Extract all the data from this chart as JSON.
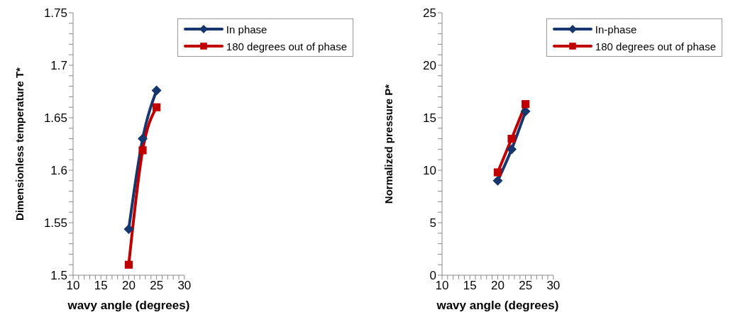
{
  "chart_data": [
    {
      "type": "line",
      "xlabel": "wavy angle (degrees)",
      "ylabel": "Dimensionless temperature T*",
      "x": [
        20,
        22.5,
        25
      ],
      "series": [
        {
          "name": "In phase",
          "color": "#17366e",
          "marker": "diamond",
          "values": [
            1.544,
            1.63,
            1.676
          ]
        },
        {
          "name": "180 degrees out of phase",
          "color": "#c00000",
          "marker": "square",
          "values": [
            1.51,
            1.619,
            1.66
          ]
        }
      ],
      "xlim": [
        10,
        30
      ],
      "xticks": [
        10,
        {
          "value": 11,
          "label": null
        },
        {
          "value": 12,
          "label": null
        },
        {
          "value": 13,
          "label": null
        },
        {
          "value": 14,
          "label": null
        },
        15,
        {
          "value": 16,
          "label": null
        },
        {
          "value": 17,
          "label": null
        },
        {
          "value": 18,
          "label": null
        },
        {
          "value": 19,
          "label": null
        },
        20,
        {
          "value": 21,
          "label": null
        },
        {
          "value": 22,
          "label": null
        },
        {
          "value": 23,
          "label": null
        },
        {
          "value": 24,
          "label": null
        },
        25,
        {
          "value": 26,
          "label": null
        },
        {
          "value": 27,
          "label": null
        },
        {
          "value": 28,
          "label": null
        },
        {
          "value": 29,
          "label": null
        },
        30
      ],
      "ylim": [
        1.5,
        1.75
      ],
      "yticks": [
        1.5,
        {
          "value": 1.51,
          "label": null
        },
        {
          "value": 1.52,
          "label": null
        },
        {
          "value": 1.53,
          "label": null
        },
        {
          "value": 1.54,
          "label": null
        },
        1.55,
        {
          "value": 1.56,
          "label": null
        },
        {
          "value": 1.57,
          "label": null
        },
        {
          "value": 1.58,
          "label": null
        },
        {
          "value": 1.59,
          "label": null
        },
        1.6,
        {
          "value": 1.61,
          "label": null
        },
        {
          "value": 1.62,
          "label": null
        },
        {
          "value": 1.63,
          "label": null
        },
        {
          "value": 1.64,
          "label": null
        },
        1.65,
        {
          "value": 1.66,
          "label": null
        },
        {
          "value": 1.67,
          "label": null
        },
        {
          "value": 1.68,
          "label": null
        },
        {
          "value": 1.69,
          "label": null
        },
        1.7,
        {
          "value": 1.71,
          "label": null
        },
        {
          "value": 1.72,
          "label": null
        },
        {
          "value": 1.73,
          "label": null
        },
        {
          "value": 1.74,
          "label": null
        },
        1.75
      ],
      "grid": false,
      "legend": "top right",
      "line_style": "solid"
    },
    {
      "type": "line",
      "xlabel": "wavy angle (degrees)",
      "ylabel": "Normalized pressure P*",
      "x": [
        20,
        22.5,
        25
      ],
      "series": [
        {
          "name": "In-phase",
          "color": "#17366e",
          "marker": "diamond",
          "values": [
            9.0,
            12.0,
            15.6
          ]
        },
        {
          "name": "180 degrees out of phase",
          "color": "#c00000",
          "marker": "square",
          "values": [
            9.8,
            13.0,
            16.3
          ]
        }
      ],
      "xlim": [
        10,
        30
      ],
      "xticks": [
        10,
        {
          "value": 11,
          "label": null
        },
        {
          "value": 12,
          "label": null
        },
        {
          "value": 13,
          "label": null
        },
        {
          "value": 14,
          "label": null
        },
        15,
        {
          "value": 16,
          "label": null
        },
        {
          "value": 17,
          "label": null
        },
        {
          "value": 18,
          "label": null
        },
        {
          "value": 19,
          "label": null
        },
        20,
        {
          "value": 21,
          "label": null
        },
        {
          "value": 22,
          "label": null
        },
        {
          "value": 23,
          "label": null
        },
        {
          "value": 24,
          "label": null
        },
        25,
        {
          "value": 26,
          "label": null
        },
        {
          "value": 27,
          "label": null
        },
        {
          "value": 28,
          "label": null
        },
        {
          "value": 29,
          "label": null
        },
        30
      ],
      "ylim": [
        0,
        25
      ],
      "yticks": [
        0,
        {
          "value": 1,
          "label": null
        },
        {
          "value": 2,
          "label": null
        },
        {
          "value": 3,
          "label": null
        },
        {
          "value": 4,
          "label": null
        },
        5,
        {
          "value": 6,
          "label": null
        },
        {
          "value": 7,
          "label": null
        },
        {
          "value": 8,
          "label": null
        },
        {
          "value": 9,
          "label": null
        },
        10,
        {
          "value": 11,
          "label": null
        },
        {
          "value": 12,
          "label": null
        },
        {
          "value": 13,
          "label": null
        },
        {
          "value": 14,
          "label": null
        },
        15,
        {
          "value": 16,
          "label": null
        },
        {
          "value": 17,
          "label": null
        },
        {
          "value": 18,
          "label": null
        },
        {
          "value": 19,
          "label": null
        },
        20,
        {
          "value": 21,
          "label": null
        },
        {
          "value": 22,
          "label": null
        },
        {
          "value": 23,
          "label": null
        },
        {
          "value": 24,
          "label": null
        },
        25
      ],
      "grid": false,
      "legend": "top right",
      "line_style": "solid"
    }
  ]
}
